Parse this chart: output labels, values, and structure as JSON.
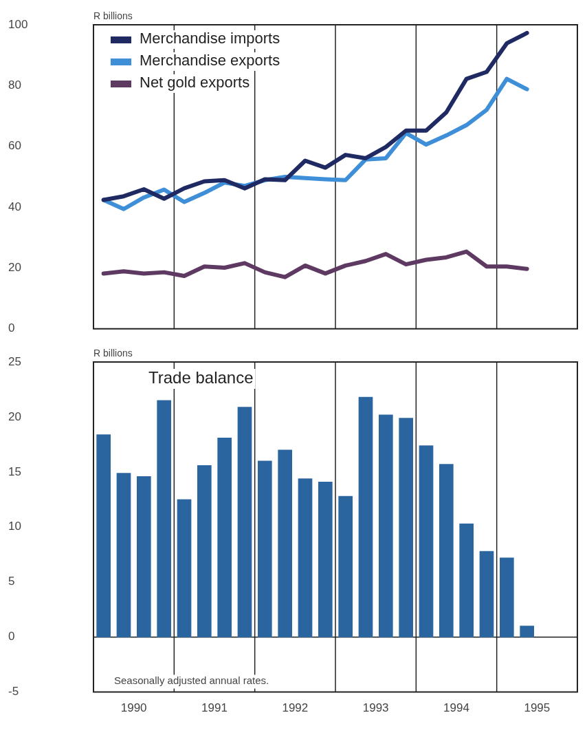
{
  "chart_data": [
    {
      "type": "line",
      "ylabel": "R billions",
      "x": [
        1990.125,
        1990.375,
        1990.625,
        1990.875,
        1991.125,
        1991.375,
        1991.625,
        1991.875,
        1992.125,
        1992.375,
        1992.625,
        1992.875,
        1993.125,
        1993.375,
        1993.625,
        1993.875,
        1994.125,
        1994.375,
        1994.625,
        1994.875,
        1995.125,
        1995.375
      ],
      "series": [
        {
          "name": "Merchandise imports",
          "color": "#1f2a63",
          "values": [
            42.4,
            43.6,
            45.9,
            42.8,
            46.2,
            48.5,
            48.9,
            46.2,
            49.2,
            48.9,
            55.3,
            53.0,
            57.2,
            56.1,
            59.8,
            65.2,
            65.2,
            71.2,
            82.2,
            84.5,
            93.9,
            97.3
          ]
        },
        {
          "name": "Merchandise exports",
          "color": "#3f8fd8",
          "values": [
            42.4,
            39.4,
            43.2,
            45.8,
            41.7,
            44.7,
            48.1,
            47.0,
            48.9,
            50.0,
            49.6,
            49.2,
            48.9,
            55.7,
            56.1,
            64.4,
            60.6,
            63.6,
            67.0,
            72.0,
            82.2,
            78.8
          ]
        },
        {
          "name": "Net gold exports",
          "color": "#5e3a63",
          "values": [
            18.2,
            18.9,
            18.2,
            18.6,
            17.4,
            20.5,
            20.1,
            21.6,
            18.6,
            17.0,
            20.8,
            18.2,
            20.8,
            22.3,
            24.6,
            21.2,
            22.7,
            23.5,
            25.4,
            20.5,
            20.5,
            19.7
          ]
        }
      ],
      "xlim": [
        1990,
        1996
      ],
      "ylim": [
        0,
        100
      ],
      "yticks": [
        0,
        20,
        40,
        60,
        80,
        100
      ],
      "tick_labels": "y",
      "legend": "top left",
      "marker": "none",
      "ref_lines": [
        {
          "axis": "x",
          "value": 1991,
          "color": "#222222"
        },
        {
          "axis": "x",
          "value": 1992,
          "color": "#222222"
        },
        {
          "axis": "x",
          "value": 1993,
          "color": "#222222"
        },
        {
          "axis": "x",
          "value": 1994,
          "color": "#222222"
        },
        {
          "axis": "x",
          "value": 1995,
          "color": "#222222"
        }
      ]
    },
    {
      "type": "bar",
      "title": "Trade balance",
      "ylabel": "R billions",
      "color": "#2b65a0",
      "x": [
        1990.125,
        1990.375,
        1990.625,
        1990.875,
        1991.125,
        1991.375,
        1991.625,
        1991.875,
        1992.125,
        1992.375,
        1992.625,
        1992.875,
        1993.125,
        1993.375,
        1993.625,
        1993.875,
        1994.125,
        1994.375,
        1994.625,
        1994.875,
        1995.125,
        1995.375
      ],
      "values": [
        18.4,
        14.9,
        14.6,
        21.5,
        12.5,
        15.6,
        18.1,
        20.9,
        16.0,
        17.0,
        14.4,
        14.1,
        12.8,
        21.8,
        20.2,
        19.9,
        17.4,
        15.7,
        10.3,
        7.8,
        7.2,
        1.0
      ],
      "xlim": [
        1990,
        1996
      ],
      "xticks": [
        {
          "value": 1990.5,
          "label": "1990"
        },
        {
          "value": 1991.5,
          "label": "1991"
        },
        {
          "value": 1992.5,
          "label": "1992"
        },
        {
          "value": 1993.5,
          "label": "1993"
        },
        {
          "value": 1994.5,
          "label": "1994"
        },
        {
          "value": 1995.5,
          "label": "1995"
        }
      ],
      "ylim": [
        -5,
        25
      ],
      "yticks": [
        -5,
        0,
        5,
        10,
        15,
        20,
        25
      ],
      "annotations": [
        "Seasonally adjusted annual rates."
      ],
      "ref_lines": [
        {
          "axis": "y",
          "value": 0,
          "color": "#222222"
        },
        {
          "axis": "x",
          "value": 1991,
          "color": "#222222"
        },
        {
          "axis": "x",
          "value": 1992,
          "color": "#222222"
        },
        {
          "axis": "x",
          "value": 1993,
          "color": "#222222"
        },
        {
          "axis": "x",
          "value": 1994,
          "color": "#222222"
        },
        {
          "axis": "x",
          "value": 1995,
          "color": "#222222"
        }
      ]
    }
  ]
}
